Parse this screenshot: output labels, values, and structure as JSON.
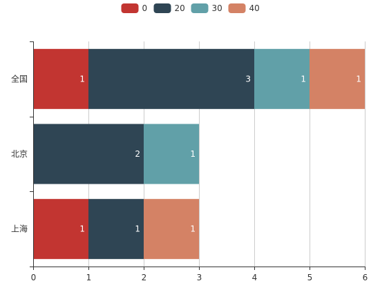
{
  "chart_data": {
    "type": "bar",
    "orientation": "horizontal",
    "stacked": true,
    "categories": [
      "全国",
      "北京",
      "上海"
    ],
    "series": [
      {
        "name": "0",
        "color": "#c23531",
        "values": [
          1,
          0,
          1
        ]
      },
      {
        "name": "20",
        "color": "#2f4554",
        "values": [
          3,
          2,
          1
        ]
      },
      {
        "name": "30",
        "color": "#61a0a8",
        "values": [
          1,
          1,
          0
        ]
      },
      {
        "name": "40",
        "color": "#d48265",
        "values": [
          1,
          0,
          1
        ]
      }
    ],
    "xlim": [
      0,
      6
    ],
    "x_ticks": [
      "0",
      "1",
      "2",
      "3",
      "4",
      "5",
      "6"
    ],
    "grid": "vertical",
    "legend_position": "top-center",
    "data_labels": true,
    "title": "",
    "xlabel": "",
    "ylabel": ""
  }
}
